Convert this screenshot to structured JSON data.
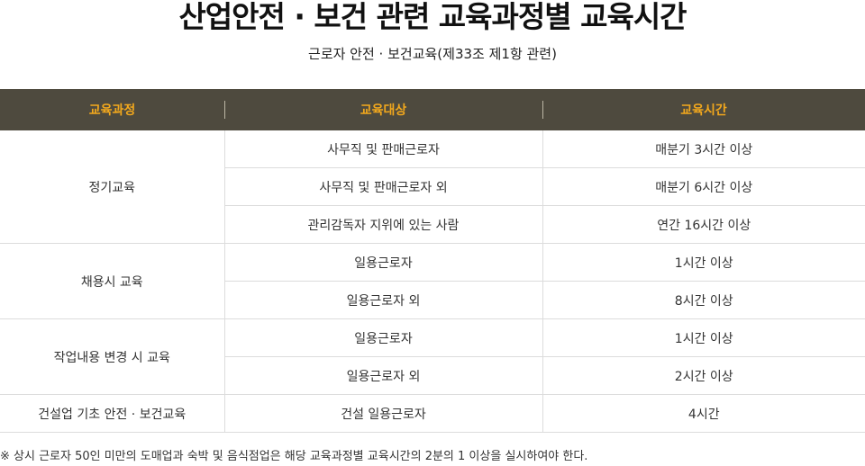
{
  "title": "산업안전 · 보건 관련 교육과정별 교육시간",
  "subtitle": "근로자 안전 · 보건교육(제33조 제1항 관련)",
  "header": {
    "course": "교육과정",
    "target": "교육대상",
    "time": "교육시간"
  },
  "groups": [
    {
      "course": "정기교육",
      "rows": [
        {
          "target": "사무직 및 판매근로자",
          "time": "매분기 3시간 이상"
        },
        {
          "target": "사무직 및 판매근로자 외",
          "time": "매분기 6시간 이상"
        },
        {
          "target": "관리감독자 지위에 있는 사람",
          "time": "연간 16시간 이상"
        }
      ]
    },
    {
      "course": "채용시 교육",
      "rows": [
        {
          "target": "일용근로자",
          "time": "1시간 이상"
        },
        {
          "target": "일용근로자 외",
          "time": "8시간 이상"
        }
      ]
    },
    {
      "course": "작업내용 변경 시 교육",
      "rows": [
        {
          "target": "일용근로자",
          "time": "1시간 이상"
        },
        {
          "target": "일용근로자 외",
          "time": "2시간 이상"
        }
      ]
    },
    {
      "course": "건설업 기초 안전 · 보건교육",
      "rows": [
        {
          "target": "건설 일용근로자",
          "time": "4시간"
        }
      ]
    }
  ],
  "footnote": "※ 상시 근로자 50인 미만의 도매업과 숙박 및 음식점업은 해당 교육과정별 교육시간의 2분의 1 이상을 실시하여야 한다.",
  "colors": {
    "header_bg": "#4e4a3e",
    "header_text": "#f2a81d"
  }
}
